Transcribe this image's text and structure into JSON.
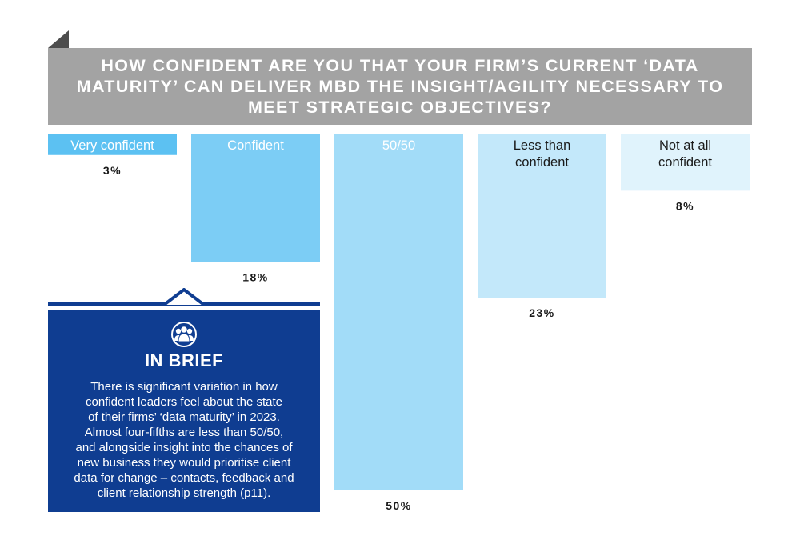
{
  "header": {
    "title": "HOW CONFIDENT ARE YOU THAT YOUR FIRM’S CURRENT ‘DATA MATURITY’ CAN DELIVER MBD THE INSIGHT/AGILITY NECESSARY TO MEET STRATEGIC OBJECTIVES?"
  },
  "chart_data": {
    "type": "bar",
    "title": "HOW CONFIDENT ARE YOU THAT YOUR FIRM’S CURRENT ‘DATA MATURITY’ CAN DELIVER MBD THE INSIGHT/AGILITY NECESSARY TO MEET STRATEGIC OBJECTIVES?",
    "categories": [
      "Very confident",
      "Confident",
      "50/50",
      "Less than confident",
      "Not at all confident"
    ],
    "category_lines": [
      [
        "Very confident"
      ],
      [
        "Confident"
      ],
      [
        "50/50"
      ],
      [
        "Less than",
        "confident"
      ],
      [
        "Not at all",
        "confident"
      ]
    ],
    "values": [
      3,
      18,
      50,
      23,
      8
    ],
    "value_labels": [
      "3%",
      "18%",
      "50%",
      "23%",
      "8%"
    ],
    "colors": [
      "#5cc1f2",
      "#7ccdf5",
      "#a2dcf8",
      "#c3e8fa",
      "#e0f3fc"
    ],
    "label_colors": [
      "#ffffff",
      "#ffffff",
      "#ffffff",
      "#1a1a1a",
      "#1a1a1a"
    ],
    "ylim": [
      0,
      50
    ],
    "xlabel": "",
    "ylabel": "",
    "legend": "none",
    "grid": false
  },
  "brief": {
    "icon": "people-group-icon",
    "title": "IN BRIEF",
    "lines": [
      "There is significant variation in how",
      "confident leaders feel about the state",
      "of their firms’ ‘data maturity’ in 2023.",
      "Almost four-fifths are less than 50/50,",
      "and alongside insight into the chances of",
      "new business they would prioritise client",
      "data for change – contacts, feedback and",
      "client relationship strength (p11)."
    ]
  }
}
